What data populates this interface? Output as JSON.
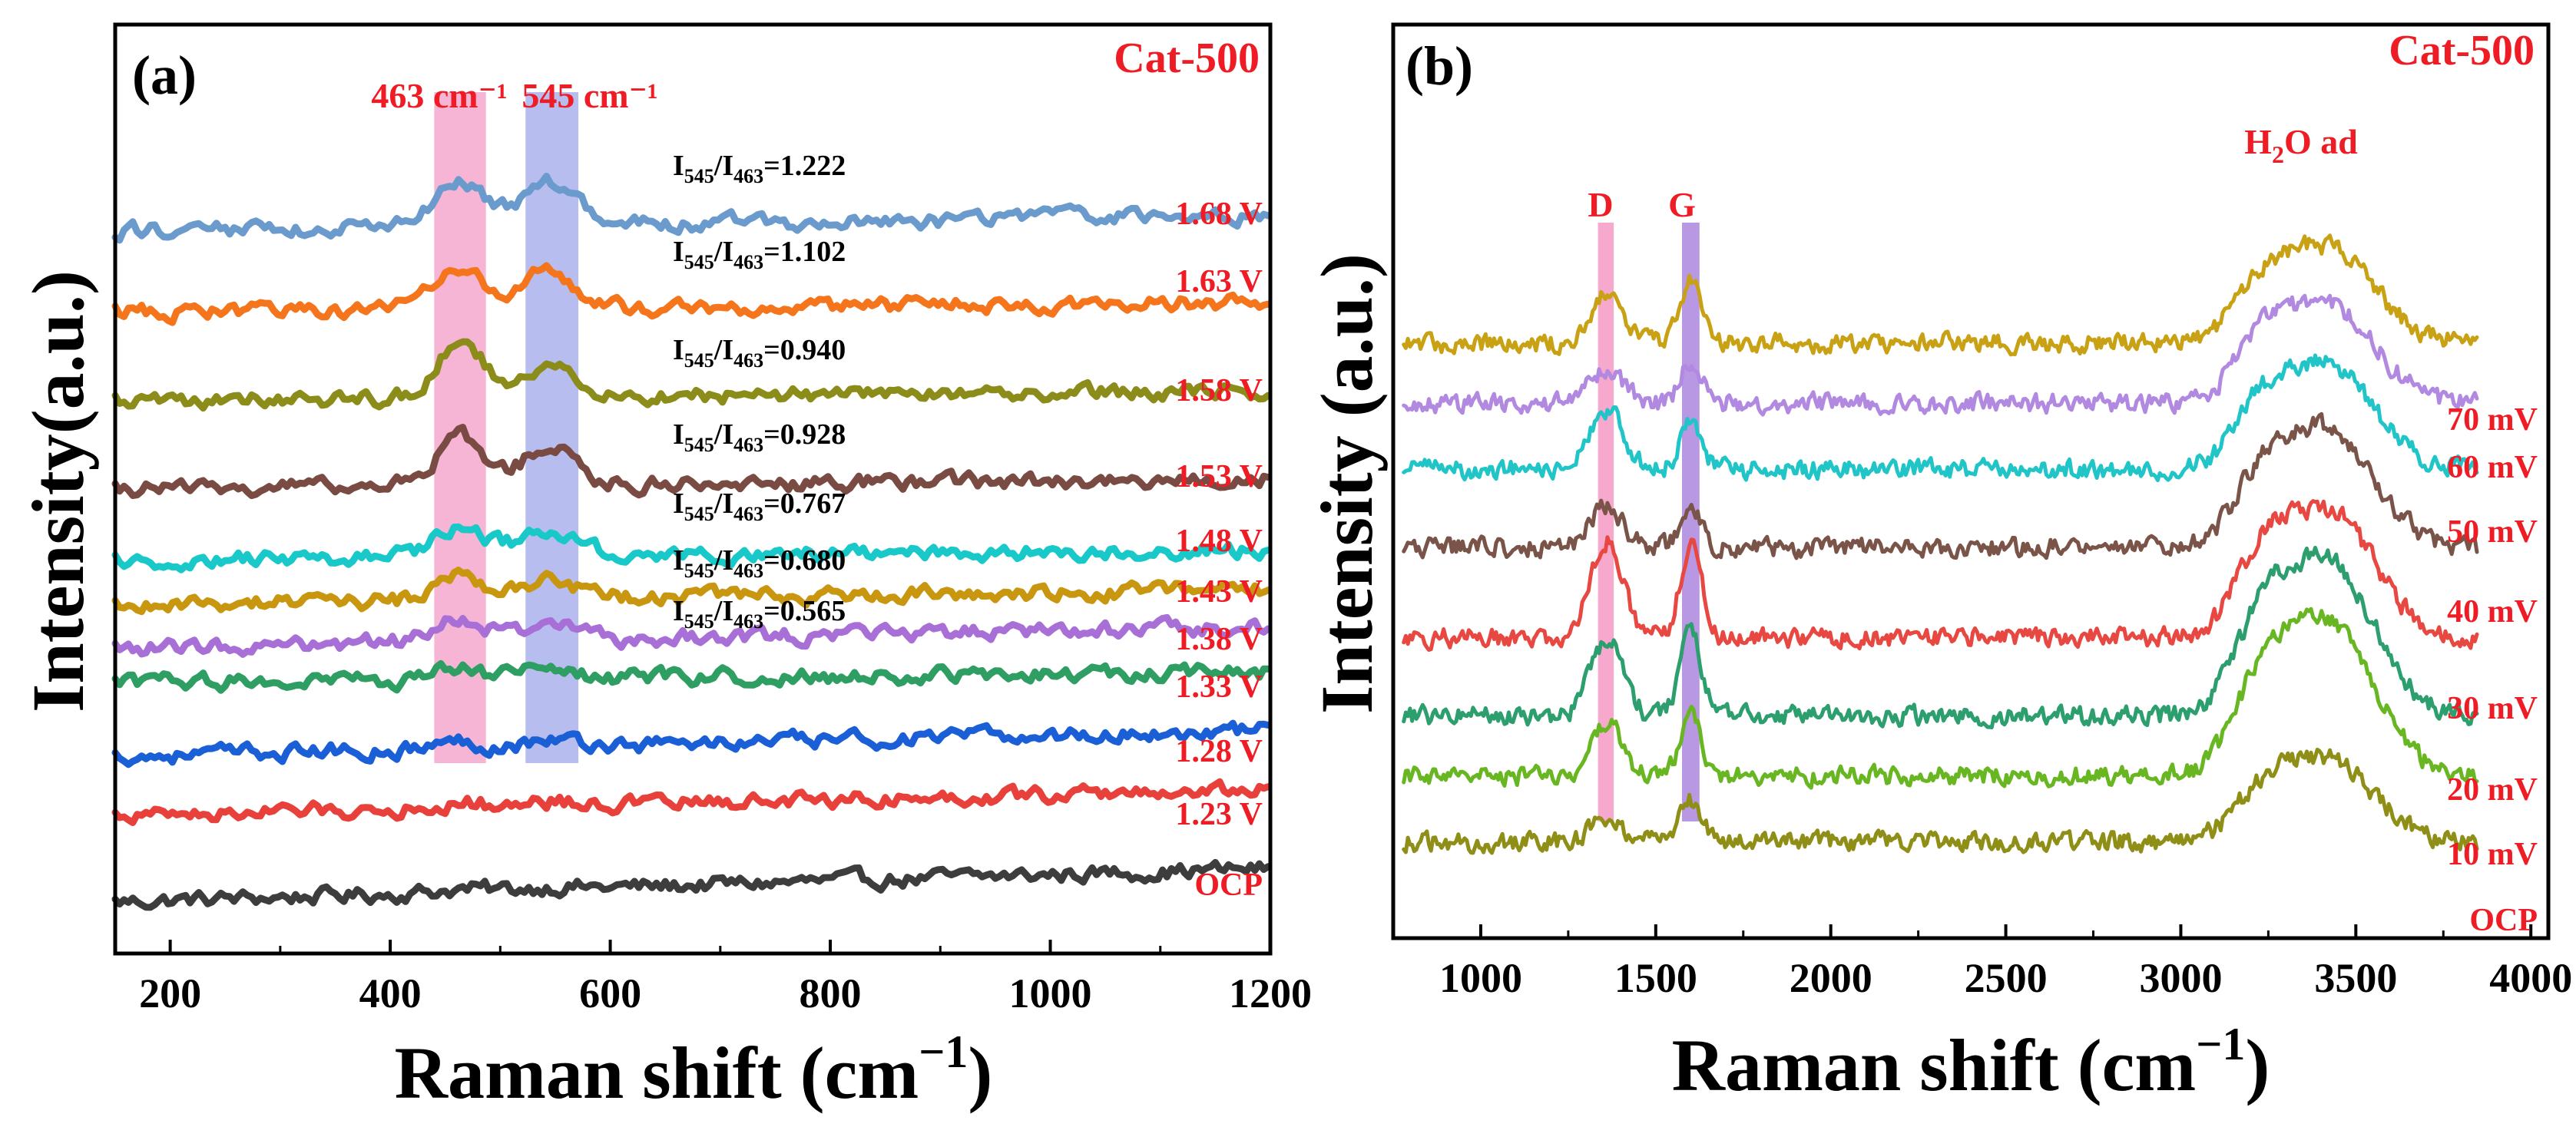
{
  "chart_data": [
    {
      "type": "line",
      "panel": "(a)",
      "catalyst": "Cat-500",
      "xlabel": "Raman shift (cm⁻¹)",
      "ylabel": "Intensity(a.u.)",
      "xlim": [
        150,
        1200
      ],
      "xticks": [
        200,
        400,
        600,
        800,
        1000,
        1200
      ],
      "highlight_bands": [
        {
          "label": "463 cm⁻¹",
          "range": [
            440,
            487
          ],
          "color": "#f6a8cf"
        },
        {
          "label": "545 cm⁻¹",
          "range": [
            523,
            571
          ],
          "color": "#aab2ec"
        }
      ],
      "series": [
        {
          "name": "OCP",
          "color": "#3d3d3d",
          "offset": 0,
          "peak463": 0.2,
          "peak545": 0.2,
          "slope": 2.6
        },
        {
          "name": "1.23 V",
          "color": "#e8413c",
          "offset": 6.7,
          "peak463": 0.4,
          "peak545": 0.4,
          "slope": 2.0
        },
        {
          "name": "1.28 V",
          "color": "#1a5fd6",
          "offset": 11.3,
          "peak463": 0.5,
          "peak545": 0.5,
          "slope": 2.0
        },
        {
          "name": "1.33 V",
          "color": "#2e9e63",
          "offset": 17.0,
          "peak463": 0.8,
          "peak545": 0.7,
          "slope": 0.8
        },
        {
          "name": "1.38 V",
          "color": "#a86fd6",
          "offset": 19.7,
          "peak463": 2.0,
          "peak545": 1.2,
          "slope": 1.6,
          "ratio": "0.565"
        },
        {
          "name": "1.43 V",
          "color": "#c8960f",
          "offset": 23.0,
          "peak463": 2.0,
          "peak545": 1.5,
          "slope": 1.2,
          "ratio": "0.680"
        },
        {
          "name": "1.48 V",
          "color": "#19c8c8",
          "offset": 26.5,
          "peak463": 2.6,
          "peak545": 2.2,
          "slope": 0.8,
          "ratio": "0.767"
        },
        {
          "name": "1.53 V",
          "color": "#7a4b43",
          "offset": 32.0,
          "peak463": 3.8,
          "peak545": 3.0,
          "slope": 0.8,
          "ratio": "0.928"
        },
        {
          "name": "1.58 V",
          "color": "#8c8c1a",
          "offset": 38.8,
          "peak463": 4.2,
          "peak545": 2.8,
          "slope": 0.8,
          "ratio": "0.940"
        },
        {
          "name": "1.63 V",
          "color": "#f4751b",
          "offset": 45.7,
          "peak463": 3.2,
          "peak545": 3.0,
          "slope": 0.8,
          "ratio": "1.102"
        },
        {
          "name": "1.68 V",
          "color": "#6a9bcc",
          "offset": 52.0,
          "peak463": 3.6,
          "peak545": 3.2,
          "slope": 1.2,
          "ratio": "1.222"
        }
      ],
      "ratio_label_prefix": "I545/I463="
    },
    {
      "type": "line",
      "panel": "(b)",
      "catalyst": "Cat-500",
      "xlabel": "Raman shift (cm⁻¹)",
      "ylabel": "Intensity (a.u.)",
      "xlim": [
        750,
        4050
      ],
      "xticks": [
        1000,
        1500,
        2000,
        2500,
        3000,
        3500,
        4000
      ],
      "highlight_bands": [
        {
          "label": "D",
          "range": [
            1335,
            1380
          ],
          "color": "#f6a0c8"
        },
        {
          "label": "G",
          "range": [
            1575,
            1625
          ],
          "color": "#b08de0"
        }
      ],
      "annotation": "H2O ad",
      "series": [
        {
          "name": "OCP",
          "color": "#8f8f18",
          "offset": 0,
          "d": 2.0,
          "g": 3.5,
          "water": 9.0
        },
        {
          "name": "10 mV",
          "color": "#68b621",
          "offset": 5.5,
          "d": 4.5,
          "g": 5.0,
          "water": 17.0
        },
        {
          "name": "20 mV",
          "color": "#2d9e6e",
          "offset": 10.5,
          "d": 6.5,
          "g": 7.0,
          "water": 17.0
        },
        {
          "name": "30 mV",
          "color": "#e84842",
          "offset": 17.0,
          "d": 8.0,
          "g": 8.0,
          "water": 14.0
        },
        {
          "name": "40 mV",
          "color": "#7a5448",
          "offset": 24.5,
          "d": 3.5,
          "g": 3.5,
          "water": 13.0
        },
        {
          "name": "50 mV",
          "color": "#21c5c8",
          "offset": 31.0,
          "d": 5.0,
          "g": 4.0,
          "water": 11.5
        },
        {
          "name": "60 mV",
          "color": "#b289e0",
          "offset": 36.5,
          "d": 3.0,
          "g": 3.5,
          "water": 11.0
        },
        {
          "name": "70 mV",
          "color": "#c9a114",
          "offset": 41.5,
          "d": 4.5,
          "g": 5.0,
          "water": 10.5
        }
      ]
    }
  ],
  "text": {
    "a": {
      "panel": "(a)",
      "catalyst": "Cat-500",
      "band1": "463 cm⁻¹",
      "band2": "545 cm⁻¹",
      "ratio_main": "I",
      "ratio_sub1": "545",
      "ratio_mid": "/I",
      "ratio_sub2": "463",
      "xlabel_main": "Raman shift (cm",
      "xlabel_sup": "−1",
      "xlabel_end": ")",
      "ylabel": "Intensity(a.u.)"
    },
    "b": {
      "panel": "(b)",
      "catalyst": "Cat-500",
      "d": "D",
      "g": "G",
      "water_main": "H",
      "water_sub": "2",
      "water_end": "O ad",
      "xlabel_main": "Raman shift (cm",
      "xlabel_sup": "−1",
      "xlabel_end": ")",
      "ylabel": "Intensity (a.u.)"
    }
  },
  "colors": {
    "label_red": "#ee1c24"
  }
}
